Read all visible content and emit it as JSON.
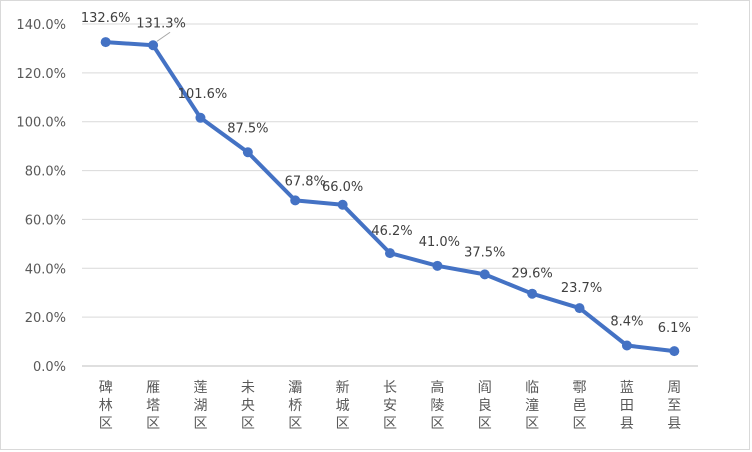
{
  "chart_data": {
    "type": "line",
    "title": "",
    "xlabel": "",
    "ylabel": "",
    "categories": [
      "碑林区",
      "雁塔区",
      "莲湖区",
      "未央区",
      "灞桥区",
      "新城区",
      "长安区",
      "高陵区",
      "阎良区",
      "临潼区",
      "鄠邑区",
      "蓝田县",
      "周至县"
    ],
    "series": [
      {
        "values": [
          132.6,
          131.3,
          101.6,
          87.5,
          67.8,
          66.0,
          46.2,
          41.0,
          37.5,
          29.6,
          23.7,
          8.4,
          6.1
        ]
      }
    ],
    "data_labels": [
      "132.6%",
      "131.3%",
      "101.6%",
      "87.5%",
      "67.8%",
      "66.0%",
      "46.2%",
      "41.0%",
      "37.5%",
      "29.6%",
      "23.7%",
      "8.4%",
      "6.1%"
    ],
    "yticks": [
      0,
      20,
      40,
      60,
      80,
      100,
      120,
      140
    ],
    "ytick_labels": [
      "0.0%",
      "20.0%",
      "40.0%",
      "60.0%",
      "80.0%",
      "100.0%",
      "120.0%",
      "140.0%"
    ],
    "ylim": [
      0,
      140
    ],
    "grid": true,
    "legend": "none",
    "colors": {
      "line": "#4472c4",
      "grid": "#d9d9d9",
      "axis": "#bfbfbf",
      "label": "#404040"
    }
  }
}
